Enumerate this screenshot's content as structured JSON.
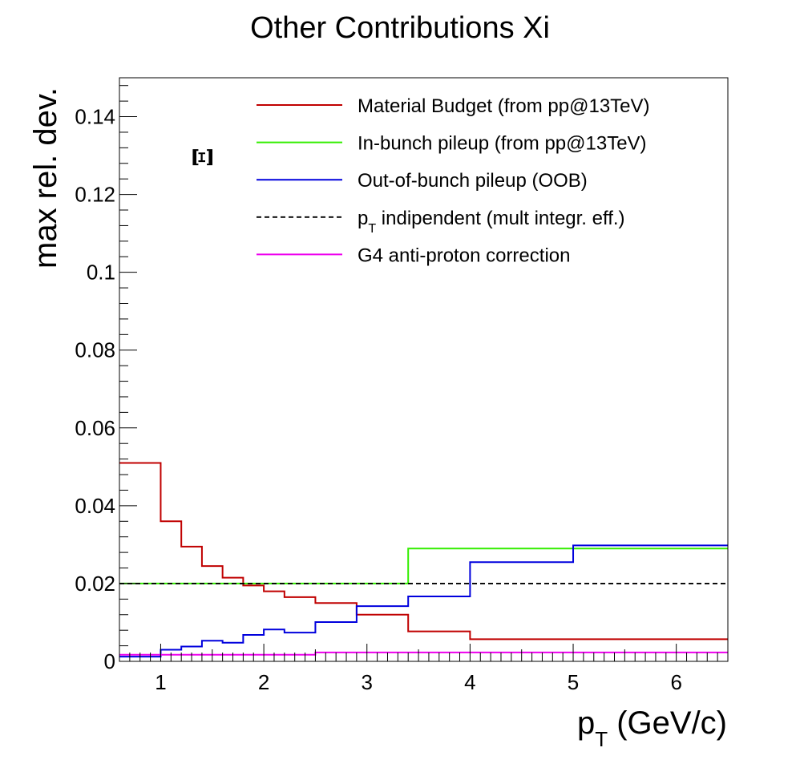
{
  "chart_data": {
    "type": "line",
    "title": "Other Contributions Xi",
    "xlabel": "p",
    "xlabel_sub": "T",
    "xlabel_unit": " (GeV/c)",
    "ylabel": "max rel. dev.",
    "xlim": [
      0.6,
      6.5
    ],
    "ylim": [
      0,
      0.15
    ],
    "x_ticks": [
      1,
      2,
      3,
      4,
      5,
      6
    ],
    "y_ticks": [
      0,
      0.02,
      0.04,
      0.06,
      0.08,
      0.1,
      0.12,
      0.14
    ],
    "y_tick_labels": [
      "0",
      "0.02",
      "0.04",
      "0.06",
      "0.08",
      "0.1",
      "0.12",
      "0.14"
    ],
    "annotation": "Ξ",
    "legend_position": "top-right",
    "series": [
      {
        "name": "Material Budget (from pp@13TeV)",
        "color": "#c00000",
        "style": "solid",
        "edges": [
          0.6,
          1.0,
          1.2,
          1.4,
          1.6,
          1.8,
          2.0,
          2.2,
          2.5,
          2.9,
          3.4,
          4.0,
          5.0,
          6.5
        ],
        "values": [
          0.051,
          0.036,
          0.0295,
          0.0245,
          0.0215,
          0.0195,
          0.018,
          0.0165,
          0.015,
          0.012,
          0.0077,
          0.0057,
          0.0057
        ]
      },
      {
        "name": "In-bunch pileup (from pp@13TeV)",
        "color": "#33ee00",
        "style": "solid",
        "edges": [
          0.6,
          3.4,
          6.5
        ],
        "values": [
          0.02,
          0.029
        ]
      },
      {
        "name": "Out-of-bunch pileup (OOB)",
        "color": "#0000dd",
        "style": "solid",
        "edges": [
          0.6,
          1.0,
          1.2,
          1.4,
          1.6,
          1.8,
          2.0,
          2.2,
          2.5,
          2.9,
          3.4,
          4.0,
          5.0,
          6.5
        ],
        "values": [
          0.0012,
          0.003,
          0.0038,
          0.0053,
          0.0048,
          0.0068,
          0.0082,
          0.0074,
          0.0101,
          0.0142,
          0.0167,
          0.0255,
          0.0298
        ]
      },
      {
        "name": "p",
        "name_sub": "T",
        "name_rest": " indipendent (mult integr. eff.)",
        "color": "#000000",
        "style": "dashed",
        "edges": [
          0.6,
          6.5
        ],
        "values": [
          0.02
        ]
      },
      {
        "name": "G4 anti-proton correction",
        "color": "#ee00ee",
        "style": "solid",
        "edges": [
          0.6,
          2.5,
          6.5
        ],
        "values": [
          0.0017,
          0.0023
        ]
      }
    ]
  }
}
